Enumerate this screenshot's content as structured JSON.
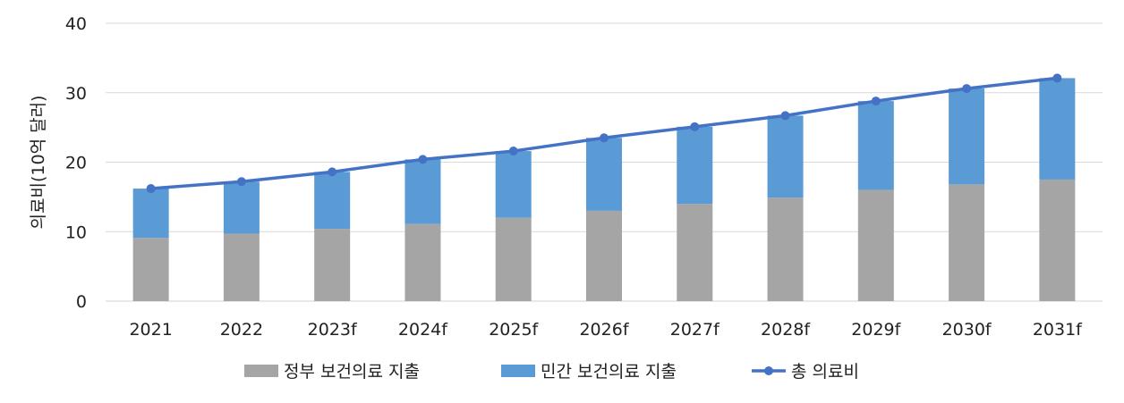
{
  "chart_data": {
    "type": "bar",
    "stacked": true,
    "title": "",
    "xlabel": "",
    "ylabel": "의료비(10억 달러)",
    "ylim": [
      0,
      40
    ],
    "yticks": [
      0,
      10,
      20,
      30,
      40
    ],
    "grid": true,
    "legend_position": "bottom",
    "categories": [
      "2021",
      "2022",
      "2023f",
      "2024f",
      "2025f",
      "2026f",
      "2027f",
      "2028f",
      "2029f",
      "2030f",
      "2031f"
    ],
    "series": [
      {
        "name": "정부 보건의료 지출",
        "kind": "bar",
        "color": "#a5a5a5",
        "values": [
          9.1,
          9.7,
          10.4,
          11.1,
          12.0,
          13.0,
          14.0,
          14.9,
          16.0,
          16.8,
          17.5
        ]
      },
      {
        "name": "민간 보건의료 지출",
        "kind": "bar",
        "color": "#5b9bd5",
        "values": [
          7.1,
          7.5,
          8.2,
          9.3,
          9.6,
          10.5,
          11.1,
          11.8,
          12.8,
          13.8,
          14.6
        ]
      },
      {
        "name": "총 의료비",
        "kind": "line",
        "color": "#4472c4",
        "values": [
          16.2,
          17.2,
          18.6,
          20.4,
          21.6,
          23.5,
          25.1,
          26.7,
          28.8,
          30.6,
          32.1
        ]
      }
    ]
  }
}
